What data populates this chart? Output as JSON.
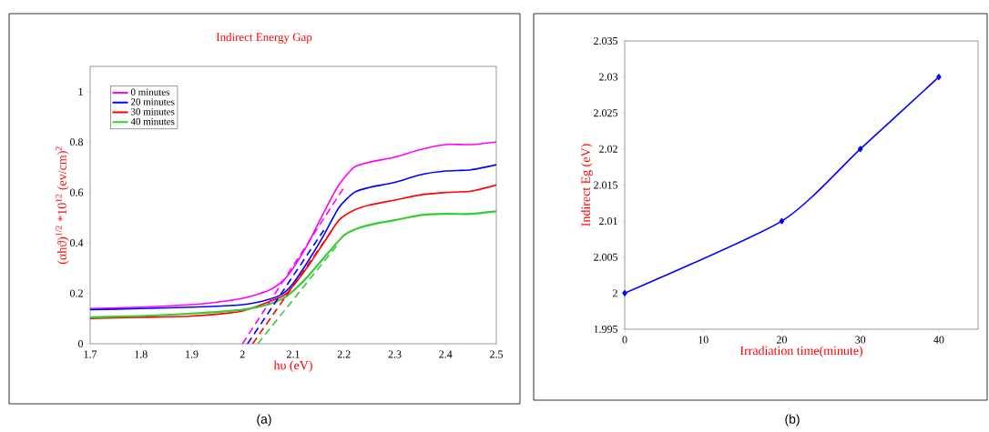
{
  "chart_data": [
    {
      "type": "line",
      "title": "Indirect Energy Gap",
      "xlabel": "hυ (eV)",
      "ylabel": "(αhϑ)$^{1/2}$ *10$^{12}$  (ev/cm)$^{2}$",
      "xlim": [
        1.7,
        2.5
      ],
      "ylim": [
        0,
        1.1
      ],
      "xticks": [
        1.7,
        1.8,
        1.9,
        2,
        2.1,
        2.2,
        2.3,
        2.4,
        2.5
      ],
      "yticks": [
        0,
        0.2,
        0.4,
        0.6,
        0.8,
        1
      ],
      "legend": "top left",
      "grid": false,
      "annotations": [
        "(a)"
      ],
      "series": [
        {
          "name": "0 minutes",
          "color": "#ff00ff",
          "x": [
            1.7,
            1.8,
            1.9,
            1.95,
            2.0,
            2.05,
            2.08,
            2.1,
            2.13,
            2.16,
            2.19,
            2.22,
            2.25,
            2.3,
            2.35,
            2.4,
            2.45,
            2.5
          ],
          "values": [
            0.14,
            0.145,
            0.155,
            0.165,
            0.18,
            0.21,
            0.25,
            0.3,
            0.4,
            0.52,
            0.63,
            0.7,
            0.72,
            0.74,
            0.77,
            0.79,
            0.79,
            0.8
          ]
        },
        {
          "name": "20 minutes",
          "color": "#0000ff",
          "x": [
            1.7,
            1.8,
            1.9,
            2.0,
            2.05,
            2.08,
            2.1,
            2.13,
            2.16,
            2.19,
            2.22,
            2.25,
            2.3,
            2.35,
            2.4,
            2.45,
            2.5
          ],
          "values": [
            0.135,
            0.14,
            0.145,
            0.155,
            0.175,
            0.2,
            0.24,
            0.33,
            0.43,
            0.54,
            0.6,
            0.62,
            0.64,
            0.67,
            0.685,
            0.69,
            0.71
          ]
        },
        {
          "name": "30 minutes",
          "color": "#ff0000",
          "x": [
            1.7,
            1.8,
            1.9,
            2.0,
            2.08,
            2.1,
            2.13,
            2.16,
            2.19,
            2.22,
            2.25,
            2.3,
            2.35,
            2.4,
            2.45,
            2.5
          ],
          "values": [
            0.1,
            0.105,
            0.11,
            0.13,
            0.19,
            0.23,
            0.31,
            0.4,
            0.49,
            0.53,
            0.55,
            0.57,
            0.59,
            0.6,
            0.605,
            0.63
          ]
        },
        {
          "name": "40 minutes",
          "color": "#33cc33",
          "x": [
            1.7,
            1.8,
            1.9,
            2.0,
            2.05,
            2.08,
            2.1,
            2.13,
            2.16,
            2.2,
            2.23,
            2.27,
            2.3,
            2.35,
            2.4,
            2.45,
            2.5
          ],
          "values": [
            0.105,
            0.11,
            0.12,
            0.135,
            0.155,
            0.18,
            0.21,
            0.27,
            0.34,
            0.43,
            0.46,
            0.48,
            0.49,
            0.51,
            0.515,
            0.515,
            0.525
          ]
        },
        {
          "type": "line",
          "line_style": "dashed",
          "color": "#ff00ff",
          "x": [
            2.0,
            2.2
          ],
          "values": [
            0,
            0.62
          ]
        },
        {
          "type": "line",
          "line_style": "dashed",
          "color": "#0000ff",
          "x": [
            2.01,
            2.16
          ],
          "values": [
            0,
            0.45
          ]
        },
        {
          "type": "line",
          "line_style": "dashed",
          "color": "#ff0000",
          "x": [
            2.02,
            2.18
          ],
          "values": [
            0,
            0.46
          ]
        },
        {
          "type": "line",
          "line_style": "dashed",
          "color": "#33cc33",
          "x": [
            2.03,
            2.19
          ],
          "values": [
            0,
            0.4
          ]
        }
      ]
    },
    {
      "type": "line",
      "xlabel": "Irradiation time(minute)",
      "ylabel": "Indirect  Eg  (eV)",
      "xlim": [
        0,
        45
      ],
      "ylim": [
        1.995,
        2.035
      ],
      "xticks": [
        0,
        10,
        20,
        30,
        40
      ],
      "yticks": [
        1.995,
        2,
        2.005,
        2.01,
        2.015,
        2.02,
        2.025,
        2.03,
        2.035
      ],
      "marker": "diamond",
      "grid": false,
      "annotations": [
        "(b)"
      ],
      "series": [
        {
          "color": "#0000ff",
          "x": [
            0,
            20,
            30,
            40
          ],
          "values": [
            2,
            2.01,
            2.02,
            2.03
          ]
        }
      ]
    }
  ]
}
